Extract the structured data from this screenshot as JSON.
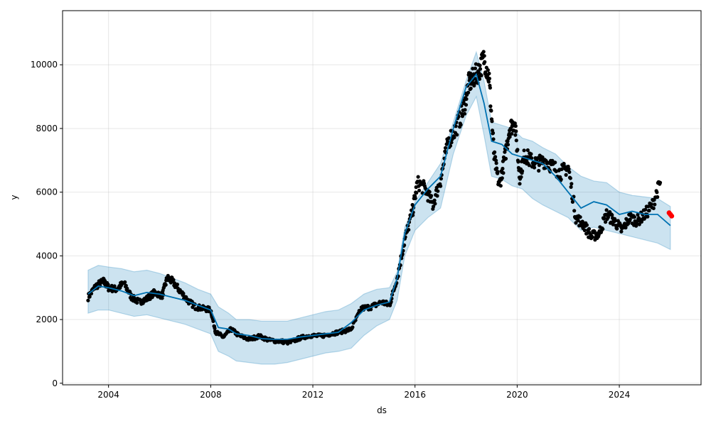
{
  "chart_data": {
    "type": "scatter",
    "title": "",
    "xlabel": "ds",
    "ylabel": "y",
    "xlim": [
      2002.2,
      2027.2
    ],
    "ylim": [
      -50,
      11700
    ],
    "xticks": [
      2004,
      2008,
      2012,
      2016,
      2020,
      2024
    ],
    "xtick_labels": [
      "2004",
      "2008",
      "2012",
      "2016",
      "2020",
      "2024"
    ],
    "yticks": [
      0,
      2000,
      4000,
      6000,
      8000,
      10000
    ],
    "ytick_labels": [
      "0",
      "2000",
      "4000",
      "6000",
      "8000",
      "10000"
    ],
    "grid": true,
    "colors": {
      "observed": "#000000",
      "forecast": "#0072B2",
      "band": "#0072B2",
      "highlight": "#ff0000"
    },
    "series": [
      {
        "kind": "observed",
        "x": [
          2003.2,
          2003.5,
          2003.8,
          2004.0,
          2004.3,
          2004.6,
          2004.9,
          2005.2,
          2005.5,
          2005.8,
          2006.1,
          2006.3,
          2006.5,
          2006.8,
          2007.1,
          2007.4,
          2007.7,
          2008.0,
          2008.2,
          2008.5,
          2008.8,
          2009.1,
          2009.5,
          2009.9,
          2010.3,
          2010.7,
          2011.1,
          2011.5,
          2011.9,
          2012.3,
          2012.7,
          2013.1,
          2013.5,
          2013.9,
          2014.3,
          2014.7,
          2015.0,
          2015.3,
          2015.6,
          2015.9,
          2016.1,
          2016.4,
          2016.7,
          2017.0,
          2017.3,
          2017.6,
          2017.9,
          2018.1,
          2018.3,
          2018.5,
          2018.7,
          2018.9,
          2019.1,
          2019.3,
          2019.5,
          2019.7,
          2019.9,
          2020.1,
          2020.3,
          2020.5,
          2020.8,
          2021.1,
          2021.4,
          2021.7,
          2022.0,
          2022.3,
          2022.6,
          2022.9,
          2023.2,
          2023.5,
          2023.8,
          2024.1,
          2024.4,
          2024.7,
          2025.0,
          2025.3,
          2025.6
        ],
        "y": [
          2700,
          3050,
          3200,
          3000,
          2950,
          3150,
          2700,
          2550,
          2650,
          2850,
          2750,
          3300,
          3200,
          2900,
          2600,
          2400,
          2350,
          2300,
          1600,
          1450,
          1700,
          1500,
          1380,
          1480,
          1350,
          1320,
          1280,
          1420,
          1500,
          1480,
          1550,
          1620,
          1700,
          2350,
          2400,
          2550,
          2450,
          3300,
          4500,
          5400,
          6300,
          6100,
          5600,
          6400,
          7600,
          8000,
          8600,
          9400,
          9600,
          9800,
          10200,
          9600,
          7100,
          6200,
          7000,
          8000,
          8200,
          6500,
          7200,
          7000,
          6900,
          7000,
          6800,
          6600,
          6800,
          5200,
          5000,
          4600,
          4700,
          5300,
          5100,
          4800,
          5200,
          5100,
          5300,
          5600,
          6300
        ]
      },
      {
        "kind": "forecast",
        "x": [
          2003.2,
          2003.6,
          2004.0,
          2004.5,
          2005.0,
          2005.5,
          2006.0,
          2006.5,
          2007.0,
          2007.5,
          2008.0,
          2008.3,
          2008.7,
          2009.0,
          2009.5,
          2010.0,
          2010.5,
          2011.0,
          2011.5,
          2012.0,
          2012.5,
          2013.0,
          2013.5,
          2014.0,
          2014.5,
          2015.0,
          2015.3,
          2015.6,
          2016.0,
          2016.5,
          2017.0,
          2017.5,
          2018.0,
          2018.4,
          2018.7,
          2019.0,
          2019.4,
          2019.8,
          2020.2,
          2020.6,
          2021.0,
          2021.5,
          2022.0,
          2022.5,
          2023.0,
          2023.5,
          2024.0,
          2024.5,
          2025.0,
          2025.5,
          2026.0
        ],
        "y": [
          2800,
          3050,
          3000,
          2900,
          2750,
          2850,
          2800,
          2700,
          2600,
          2450,
          2300,
          1750,
          1700,
          1550,
          1500,
          1400,
          1380,
          1380,
          1450,
          1500,
          1550,
          1600,
          1900,
          2300,
          2450,
          2550,
          3300,
          4700,
          5600,
          6100,
          6500,
          8000,
          9300,
          9700,
          8800,
          7600,
          7500,
          7200,
          7100,
          7000,
          6900,
          6500,
          6000,
          5500,
          5700,
          5600,
          5300,
          5400,
          5300,
          5300,
          4950
        ]
      },
      {
        "kind": "interval-upper",
        "x": [
          2003.2,
          2003.6,
          2004.0,
          2004.5,
          2005.0,
          2005.5,
          2006.0,
          2006.5,
          2007.0,
          2007.5,
          2008.0,
          2008.3,
          2008.7,
          2009.0,
          2009.5,
          2010.0,
          2010.5,
          2011.0,
          2011.5,
          2012.0,
          2012.5,
          2013.0,
          2013.5,
          2014.0,
          2014.5,
          2015.0,
          2015.3,
          2015.6,
          2016.0,
          2016.5,
          2017.0,
          2017.5,
          2018.0,
          2018.4,
          2018.7,
          2019.0,
          2019.4,
          2019.8,
          2020.2,
          2020.6,
          2021.0,
          2021.5,
          2022.0,
          2022.5,
          2023.0,
          2023.5,
          2024.0,
          2024.5,
          2025.0,
          2025.5,
          2026.0
        ],
        "y": [
          3550,
          3700,
          3650,
          3600,
          3500,
          3550,
          3450,
          3300,
          3150,
          2950,
          2800,
          2400,
          2200,
          2000,
          2000,
          1950,
          1950,
          1950,
          2050,
          2150,
          2250,
          2300,
          2500,
          2800,
          2950,
          3000,
          3500,
          4900,
          5700,
          6300,
          6900,
          8200,
          9500,
          10400,
          9500,
          8200,
          8100,
          8000,
          7700,
          7600,
          7400,
          7200,
          6800,
          6500,
          6350,
          6300,
          6000,
          5900,
          5850,
          5800,
          5550
        ]
      },
      {
        "kind": "interval-lower",
        "x": [
          2003.2,
          2003.6,
          2004.0,
          2004.5,
          2005.0,
          2005.5,
          2006.0,
          2006.5,
          2007.0,
          2007.5,
          2008.0,
          2008.3,
          2008.7,
          2009.0,
          2009.5,
          2010.0,
          2010.5,
          2011.0,
          2011.5,
          2012.0,
          2012.5,
          2013.0,
          2013.5,
          2014.0,
          2014.5,
          2015.0,
          2015.3,
          2015.6,
          2016.0,
          2016.5,
          2017.0,
          2017.5,
          2018.0,
          2018.4,
          2018.7,
          2019.0,
          2019.4,
          2019.8,
          2020.2,
          2020.6,
          2021.0,
          2021.5,
          2022.0,
          2022.5,
          2023.0,
          2023.5,
          2024.0,
          2024.5,
          2025.0,
          2025.5,
          2026.0
        ],
        "y": [
          2200,
          2300,
          2300,
          2200,
          2100,
          2150,
          2050,
          1950,
          1850,
          1700,
          1550,
          1000,
          850,
          700,
          650,
          600,
          600,
          650,
          750,
          850,
          950,
          1000,
          1100,
          1500,
          1800,
          2000,
          2600,
          4000,
          4800,
          5200,
          5500,
          7200,
          8400,
          9000,
          7800,
          6500,
          6400,
          6200,
          6100,
          5800,
          5600,
          5400,
          5200,
          4800,
          4900,
          4800,
          4700,
          4600,
          4500,
          4400,
          4200
        ]
      },
      {
        "kind": "highlight",
        "x": [
          2026.0,
          2026.05,
          2025.95
        ],
        "y": [
          5300,
          5250,
          5350
        ]
      }
    ]
  }
}
